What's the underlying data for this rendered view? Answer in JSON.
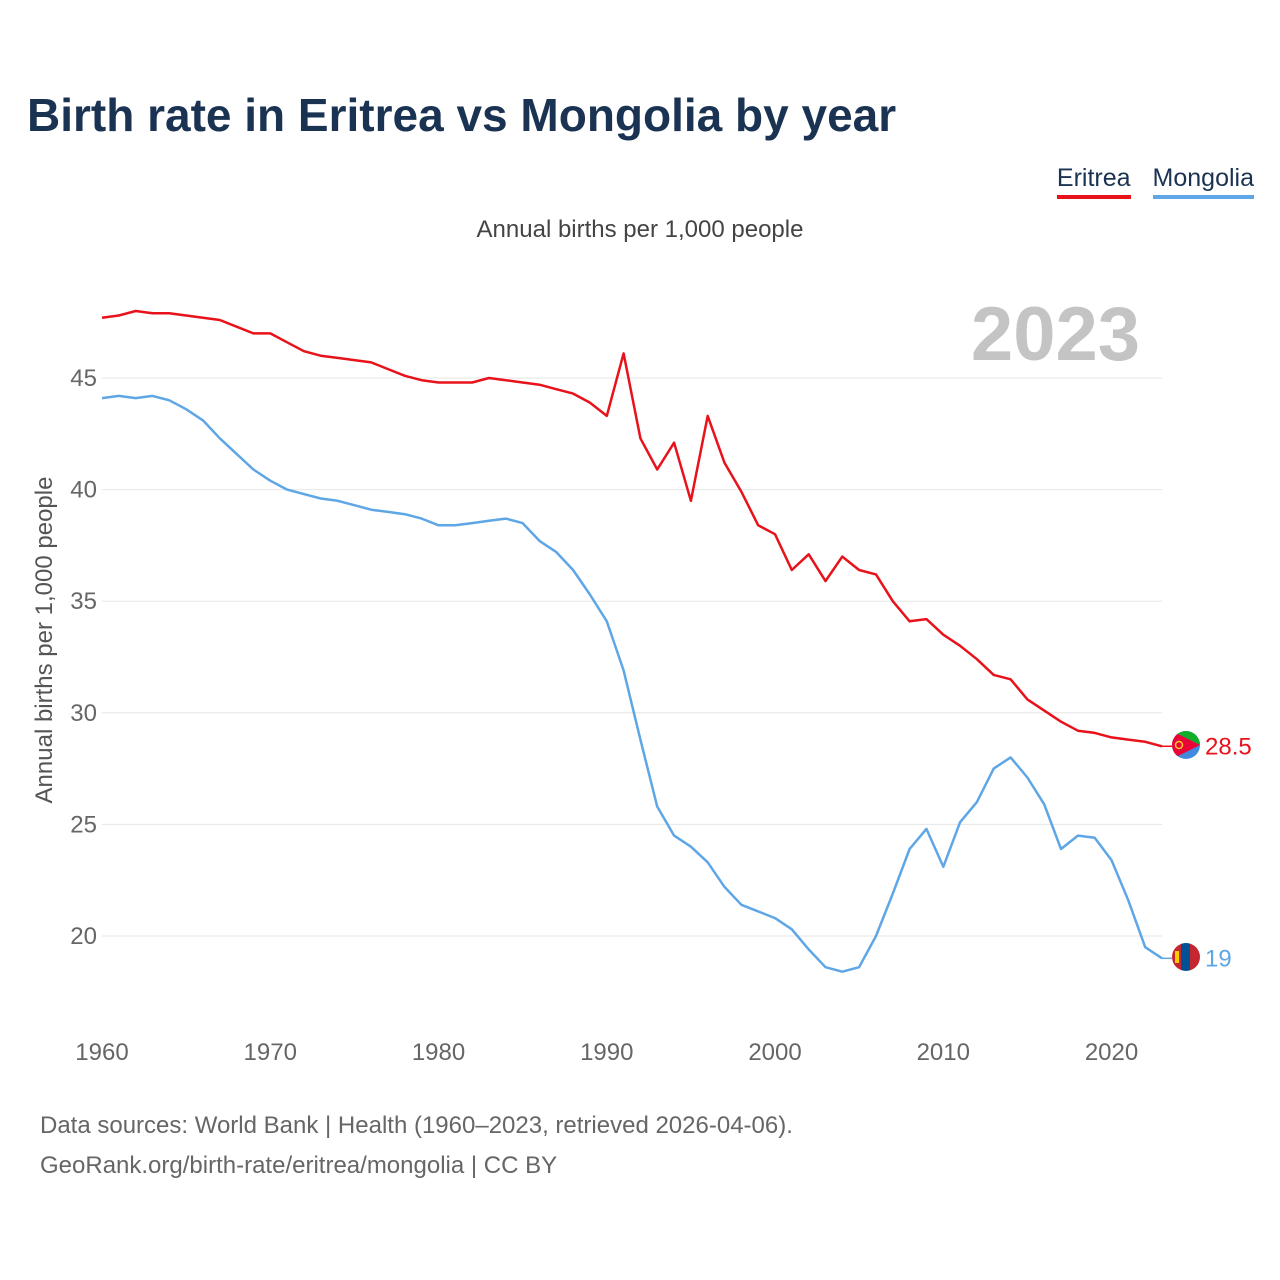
{
  "title": "Birth rate in Eritrea vs Mongolia by year",
  "subtitle": "Annual births per 1,000 people",
  "footer": {
    "line1": "Data sources: World Bank | Health (1960–2023, retrieved 2026-04-06).",
    "line2": "GeoRank.org/birth-rate/eritrea/mongolia | CC BY"
  },
  "colors": {
    "eritrea": "#e8121b",
    "mongolia": "#5ea6e6",
    "title": "#1b3352",
    "watermark": "#c4c4c4"
  },
  "chart_data": {
    "type": "line",
    "title": "Birth rate in Eritrea vs Mongolia by year",
    "ylabel": "Annual births per 1,000 people",
    "xlabel": "",
    "year_label": "2023",
    "xlim": [
      1960,
      2023
    ],
    "ylim": [
      16.5,
      49
    ],
    "x_ticks": [
      1960,
      1970,
      1980,
      1990,
      2000,
      2010,
      2020
    ],
    "y_ticks": [
      20,
      25,
      30,
      35,
      40,
      45
    ],
    "grid": true,
    "legend_position": "top-right",
    "x": [
      1960,
      1961,
      1962,
      1963,
      1964,
      1965,
      1966,
      1967,
      1968,
      1969,
      1970,
      1971,
      1972,
      1973,
      1974,
      1975,
      1976,
      1977,
      1978,
      1979,
      1980,
      1981,
      1982,
      1983,
      1984,
      1985,
      1986,
      1987,
      1988,
      1989,
      1990,
      1991,
      1992,
      1993,
      1994,
      1995,
      1996,
      1997,
      1998,
      1999,
      2000,
      2001,
      2002,
      2003,
      2004,
      2005,
      2006,
      2007,
      2008,
      2009,
      2010,
      2011,
      2012,
      2013,
      2014,
      2015,
      2016,
      2017,
      2018,
      2019,
      2020,
      2021,
      2022,
      2023
    ],
    "series": [
      {
        "name": "Eritrea",
        "color": "#e8121b",
        "end_label": "28.5",
        "values": [
          47.7,
          47.8,
          48.0,
          47.9,
          47.9,
          47.8,
          47.7,
          47.6,
          47.3,
          47.0,
          47.0,
          46.6,
          46.2,
          46.0,
          45.9,
          45.8,
          45.7,
          45.4,
          45.1,
          44.9,
          44.8,
          44.8,
          44.8,
          45.0,
          44.9,
          44.8,
          44.7,
          44.5,
          44.3,
          43.9,
          43.3,
          46.1,
          42.3,
          40.9,
          42.1,
          39.5,
          43.3,
          41.2,
          39.9,
          38.4,
          38.0,
          36.4,
          37.1,
          35.9,
          37.0,
          36.4,
          36.2,
          35.0,
          34.1,
          34.2,
          33.5,
          33.0,
          32.4,
          31.7,
          31.5,
          30.6,
          30.1,
          29.6,
          29.2,
          29.1,
          28.9,
          28.8,
          28.7,
          28.5
        ]
      },
      {
        "name": "Mongolia",
        "color": "#5ea6e6",
        "end_label": "19",
        "values": [
          44.1,
          44.2,
          44.1,
          44.2,
          44.0,
          43.6,
          43.1,
          42.3,
          41.6,
          40.9,
          40.4,
          40.0,
          39.8,
          39.6,
          39.5,
          39.3,
          39.1,
          39.0,
          38.9,
          38.7,
          38.4,
          38.4,
          38.5,
          38.6,
          38.7,
          38.5,
          37.7,
          37.2,
          36.4,
          35.3,
          34.1,
          31.9,
          28.8,
          25.8,
          24.5,
          24.0,
          23.3,
          22.2,
          21.4,
          21.1,
          20.8,
          20.3,
          19.4,
          18.6,
          18.4,
          18.6,
          20.0,
          21.9,
          23.9,
          24.8,
          23.1,
          25.1,
          26.0,
          27.5,
          28.0,
          27.1,
          25.9,
          23.9,
          24.5,
          24.4,
          23.4,
          21.6,
          19.5,
          19.0
        ]
      }
    ]
  }
}
